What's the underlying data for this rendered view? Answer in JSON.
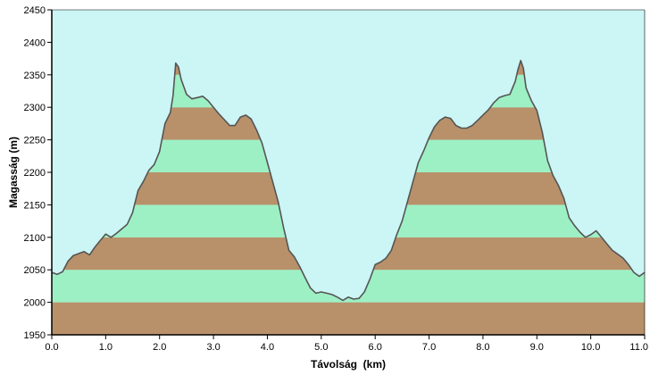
{
  "chart_data": {
    "type": "area",
    "title": "",
    "xlabel": "Távolság  (km)",
    "ylabel": "Magasság (m)",
    "xlim": [
      0,
      11
    ],
    "ylim": [
      1950,
      2450
    ],
    "grid": false,
    "x_ticks": [
      "0.0",
      "1.0",
      "2.0",
      "3.0",
      "4.0",
      "5.0",
      "6.0",
      "7.0",
      "8.0",
      "9.0",
      "10.0",
      "11.0"
    ],
    "y_ticks": [
      "1950",
      "2000",
      "2050",
      "2100",
      "2150",
      "2200",
      "2250",
      "2300",
      "2350",
      "2400",
      "2450"
    ],
    "band_size": 50,
    "colors": {
      "sky": "#ccf5f5",
      "band_brown": "#b8916a",
      "band_green": "#9df0c4",
      "profile_line": "#555555"
    },
    "series": [
      {
        "x": [
          0.0,
          0.1,
          0.2,
          0.3,
          0.4,
          0.5,
          0.6,
          0.7,
          0.8,
          0.9,
          1.0,
          1.1,
          1.2,
          1.3,
          1.4,
          1.5,
          1.6,
          1.7,
          1.8,
          1.9,
          2.0,
          2.1,
          2.2,
          2.25,
          2.3,
          2.35,
          2.4,
          2.5,
          2.6,
          2.7,
          2.8,
          2.9,
          3.0,
          3.1,
          3.2,
          3.3,
          3.4,
          3.5,
          3.6,
          3.7,
          3.8,
          3.9,
          4.0,
          4.1,
          4.2,
          4.3,
          4.4,
          4.5,
          4.6,
          4.7,
          4.8,
          4.9,
          5.0,
          5.1,
          5.2,
          5.3,
          5.4,
          5.5,
          5.6,
          5.7,
          5.8,
          5.9,
          6.0,
          6.1,
          6.2,
          6.3,
          6.4,
          6.5,
          6.6,
          6.7,
          6.8,
          6.9,
          7.0,
          7.1,
          7.2,
          7.3,
          7.4,
          7.5,
          7.6,
          7.7,
          7.8,
          7.9,
          8.0,
          8.1,
          8.2,
          8.3,
          8.4,
          8.5,
          8.6,
          8.65,
          8.7,
          8.75,
          8.8,
          8.9,
          9.0,
          9.1,
          9.2,
          9.3,
          9.4,
          9.5,
          9.6,
          9.7,
          9.8,
          9.9,
          10.0,
          10.1,
          10.2,
          10.3,
          10.4,
          10.5,
          10.6,
          10.7,
          10.8,
          10.9,
          11.0
        ],
        "y": [
          2046,
          2043,
          2047,
          2063,
          2072,
          2075,
          2078,
          2073,
          2085,
          2095,
          2105,
          2100,
          2106,
          2113,
          2120,
          2138,
          2172,
          2186,
          2203,
          2212,
          2232,
          2275,
          2292,
          2318,
          2368,
          2362,
          2343,
          2320,
          2313,
          2315,
          2317,
          2310,
          2300,
          2290,
          2281,
          2272,
          2272,
          2285,
          2288,
          2282,
          2265,
          2245,
          2215,
          2185,
          2155,
          2115,
          2080,
          2070,
          2055,
          2038,
          2022,
          2014,
          2016,
          2014,
          2012,
          2008,
          2003,
          2008,
          2005,
          2006,
          2016,
          2035,
          2058,
          2062,
          2068,
          2080,
          2104,
          2125,
          2155,
          2185,
          2215,
          2233,
          2253,
          2270,
          2280,
          2285,
          2283,
          2272,
          2268,
          2268,
          2272,
          2280,
          2288,
          2296,
          2307,
          2315,
          2318,
          2320,
          2340,
          2358,
          2372,
          2360,
          2330,
          2310,
          2295,
          2262,
          2218,
          2195,
          2180,
          2160,
          2130,
          2118,
          2108,
          2100,
          2104,
          2110,
          2100,
          2090,
          2080,
          2074,
          2068,
          2058,
          2046,
          2040,
          2046
        ]
      }
    ]
  }
}
